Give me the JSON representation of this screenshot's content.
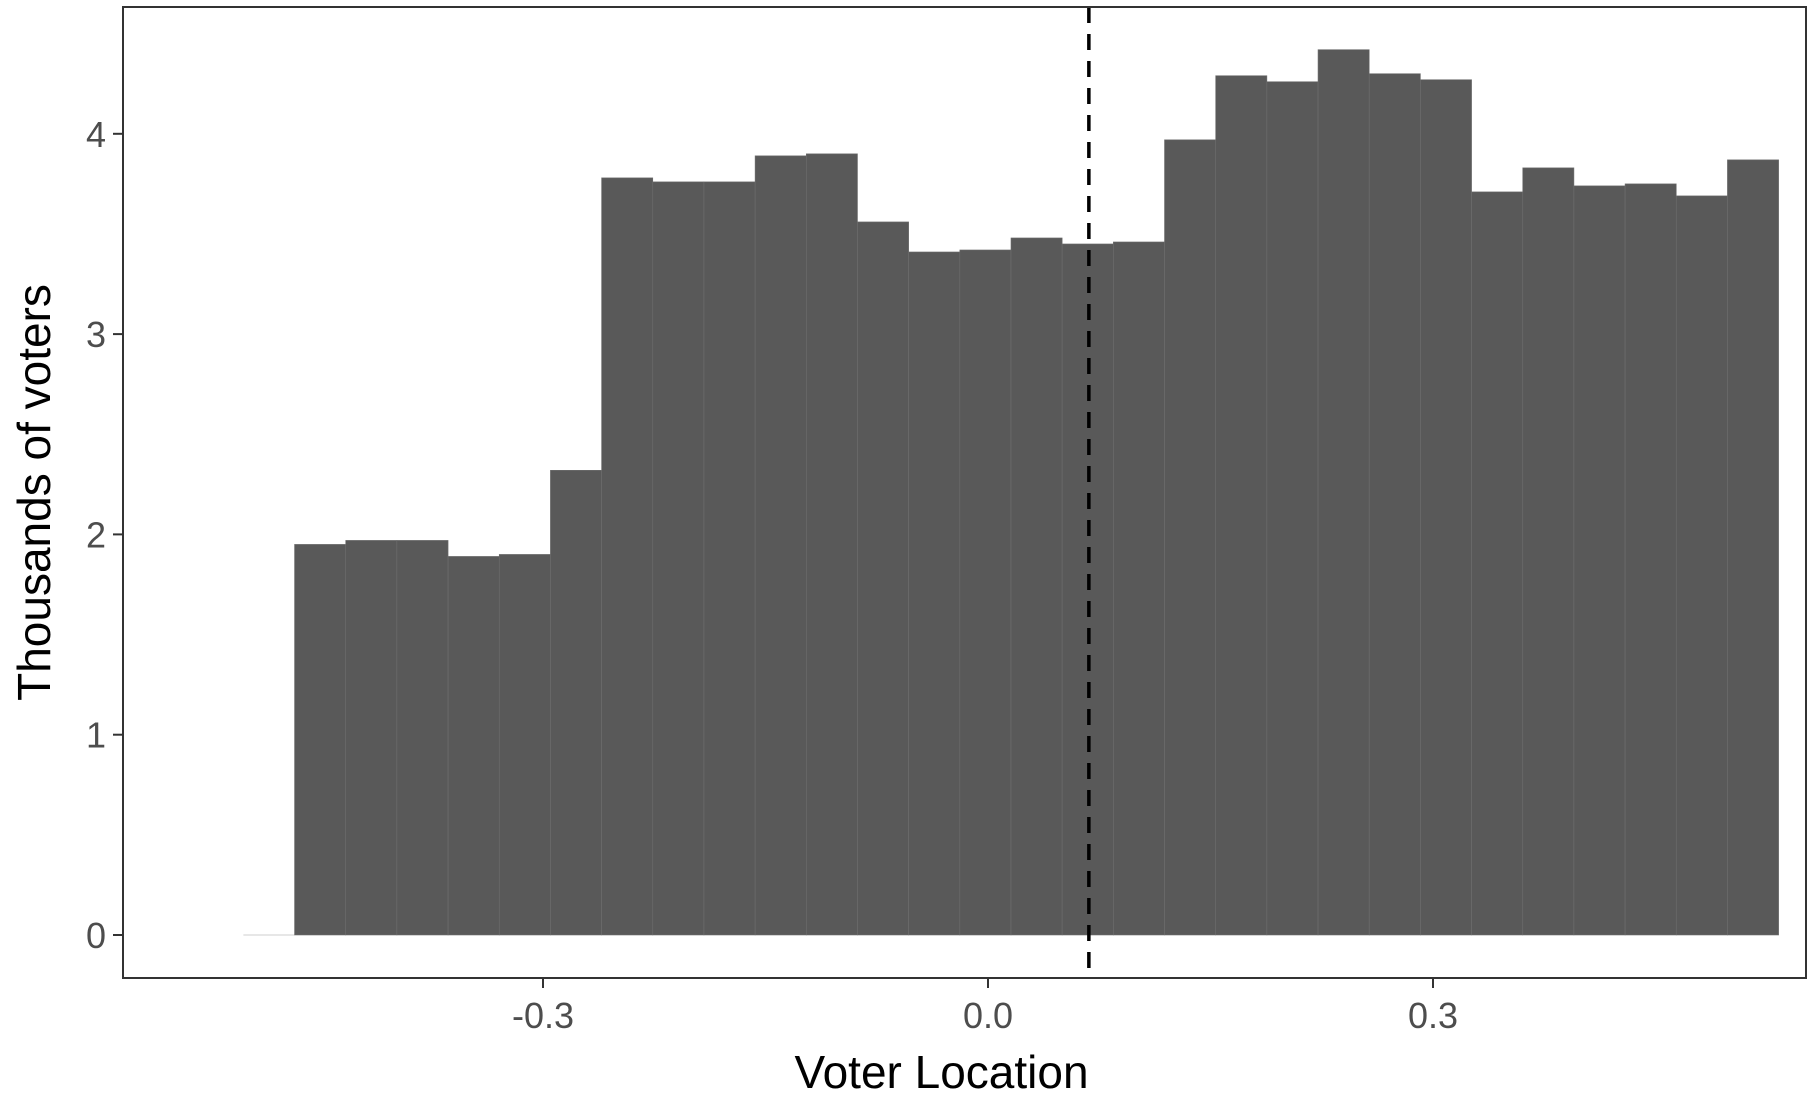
{
  "chart_data": {
    "type": "bar",
    "title": "",
    "xlabel": "Voter Location",
    "ylabel": "Thousands of voters",
    "xlim": [
      -0.5,
      0.55
    ],
    "ylim": [
      0,
      4.5
    ],
    "x_ticks": [
      -0.3,
      0.0,
      0.3
    ],
    "x_tick_labels": [
      "-0.3",
      "0.0",
      "0.3"
    ],
    "y_ticks": [
      0,
      1,
      2,
      3,
      4
    ],
    "y_tick_labels": [
      "0",
      "1",
      "2",
      "3",
      "4"
    ],
    "bin_width": 0.0345,
    "bin_left_edges": [
      -0.4675,
      -0.433,
      -0.3985,
      -0.364,
      -0.3295,
      -0.295,
      -0.2605,
      -0.226,
      -0.1915,
      -0.157,
      -0.1225,
      -0.088,
      -0.0535,
      -0.019,
      0.0155,
      0.05,
      0.0845,
      0.119,
      0.1535,
      0.188,
      0.2225,
      0.257,
      0.2915,
      0.326,
      0.3605,
      0.395,
      0.4295,
      0.464,
      0.4985
    ],
    "values": [
      1.95,
      1.97,
      1.97,
      1.89,
      1.9,
      2.32,
      3.78,
      3.76,
      3.76,
      3.89,
      3.9,
      3.56,
      3.41,
      3.42,
      3.48,
      3.45,
      3.46,
      3.97,
      4.29,
      4.26,
      4.42,
      4.3,
      4.27,
      3.71,
      3.83,
      3.74,
      3.75,
      3.69,
      3.87
    ],
    "reference_line": {
      "x": 0.068,
      "style": "dashed",
      "color": "#000000"
    },
    "bar_color": "#595959",
    "grid": false,
    "legend": "none"
  }
}
